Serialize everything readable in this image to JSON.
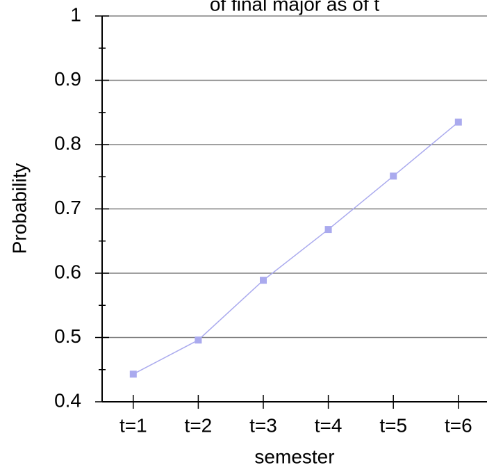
{
  "chart_data": {
    "type": "line",
    "title": "of final major as of t",
    "x_label": "semester",
    "y_label": "Probability",
    "categories": [
      "t=1",
      "t=2",
      "t=3",
      "t=4",
      "t=5",
      "t=6"
    ],
    "series": [
      {
        "name": "Probability",
        "color": "#aaaaee",
        "values": [
          0.443,
          0.496,
          0.589,
          0.668,
          0.751,
          0.835
        ]
      }
    ],
    "ylim": [
      0.4,
      1
    ],
    "yticks": [
      0.4,
      0.5,
      0.6,
      0.7,
      0.8,
      0.9,
      1
    ],
    "y_minor_ticks": [
      0.45,
      0.55,
      0.65,
      0.75,
      0.85,
      0.95
    ],
    "grid": true
  }
}
